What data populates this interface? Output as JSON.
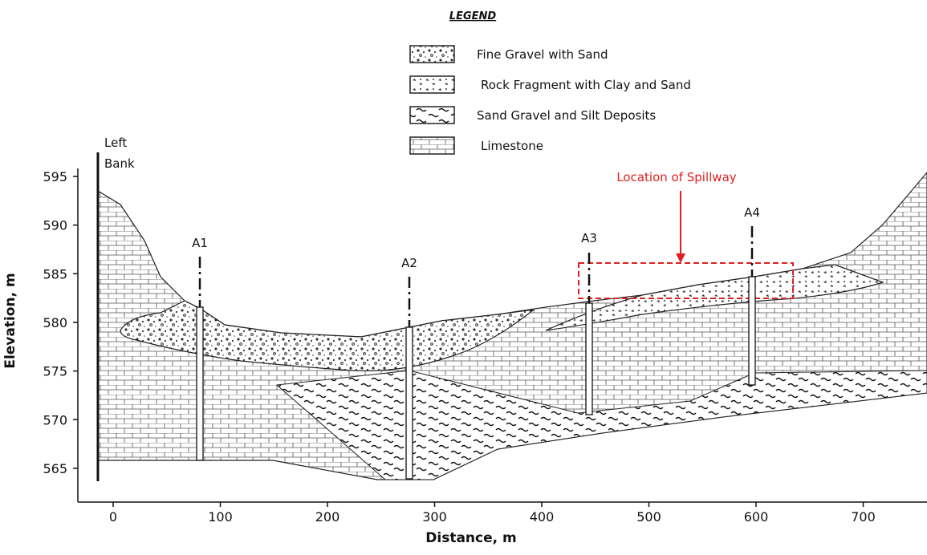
{
  "legend": {
    "title": "LEGEND",
    "items": [
      "Fine Gravel with Sand",
      "Rock Fragment with Clay and Sand",
      "Sand Gravel and Silt Deposits",
      "Limestone"
    ]
  },
  "axes": {
    "y": {
      "label": "Elevation, m",
      "ticks": [
        565,
        570,
        575,
        580,
        585,
        590,
        595
      ]
    },
    "x": {
      "label": "Distance, m",
      "ticks": [
        0,
        100,
        200,
        300,
        400,
        500,
        600,
        700
      ]
    }
  },
  "annotations": {
    "left_bank": [
      "Left",
      "Bank"
    ],
    "spillway": "Location of Spillway"
  },
  "boreholes": [
    "A1",
    "A2",
    "A3",
    "A4"
  ]
}
